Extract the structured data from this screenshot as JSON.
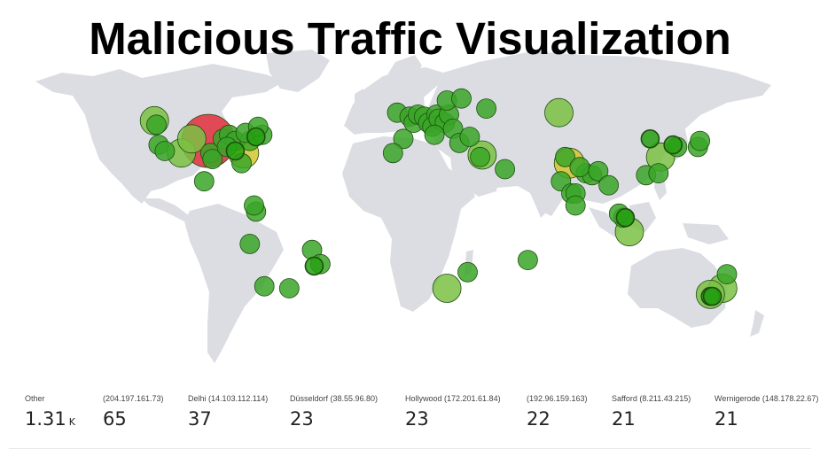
{
  "title": "Malicious Traffic Visualization",
  "colors": {
    "land": "#dcdde2",
    "high": "#e0404f",
    "medium": "#d4c430",
    "low_light": "#7ac143",
    "low": "#3aa628",
    "low_dark": "#26a012",
    "stroke": "#1f4d10"
  },
  "legend": [
    {
      "label": "Other",
      "value": "1.31",
      "unit": "K"
    },
    {
      "label": "(204.197.161.73)",
      "value": "65"
    },
    {
      "label": "Delhi (14.103.112.114)",
      "value": "37"
    },
    {
      "label": "Düsseldorf (38.55.96.80)",
      "value": "23"
    },
    {
      "label": "Hollywood (172.201.61.84)",
      "value": "23"
    },
    {
      "label": "(192.96.159.163)",
      "value": "22"
    },
    {
      "label": "Safford (8.211.43.215)",
      "value": "21"
    },
    {
      "label": "Wernigerode (148.178.22.67)",
      "value": "21"
    }
  ],
  "bubbles": [
    {
      "lon": -97,
      "lat": 39,
      "level": "high"
    },
    {
      "lon": 77,
      "lat": 28,
      "level": "medium"
    },
    {
      "lon": -80,
      "lat": 33,
      "level": "medium"
    },
    {
      "lon": -121,
      "lat": 37,
      "level": "low"
    },
    {
      "lon": -118,
      "lat": 34,
      "level": "low"
    },
    {
      "lon": -122,
      "lat": 47,
      "level": "low"
    },
    {
      "lon": -123,
      "lat": 49,
      "level": "low_light"
    },
    {
      "lon": -110,
      "lat": 33,
      "level": "low_light"
    },
    {
      "lon": -105,
      "lat": 40,
      "level": "low_light"
    },
    {
      "lon": -96,
      "lat": 33,
      "level": "low"
    },
    {
      "lon": -90,
      "lat": 40,
      "level": "low"
    },
    {
      "lon": -87,
      "lat": 42,
      "level": "low"
    },
    {
      "lon": -84,
      "lat": 39,
      "level": "low"
    },
    {
      "lon": -84,
      "lat": 34,
      "level": "low_dark"
    },
    {
      "lon": -77,
      "lat": 39,
      "level": "low"
    },
    {
      "lon": -74,
      "lat": 41,
      "level": "low_dark"
    },
    {
      "lon": -71,
      "lat": 42,
      "level": "low"
    },
    {
      "lon": -79,
      "lat": 43,
      "level": "low"
    },
    {
      "lon": -95,
      "lat": 30,
      "level": "low"
    },
    {
      "lon": -81,
      "lat": 28,
      "level": "low"
    },
    {
      "lon": -73,
      "lat": 46,
      "level": "low"
    },
    {
      "lon": -88,
      "lat": 36,
      "level": "low"
    },
    {
      "lon": -99,
      "lat": 19,
      "level": "low"
    },
    {
      "lon": -74,
      "lat": 4,
      "level": "low"
    },
    {
      "lon": -75,
      "lat": 7,
      "level": "low"
    },
    {
      "lon": -77,
      "lat": -12,
      "level": "low"
    },
    {
      "lon": -47,
      "lat": -15,
      "level": "low"
    },
    {
      "lon": -46,
      "lat": -23,
      "level": "low_dark"
    },
    {
      "lon": -43,
      "lat": -22,
      "level": "low"
    },
    {
      "lon": -70,
      "lat": -33,
      "level": "low"
    },
    {
      "lon": -58,
      "lat": -34,
      "level": "low"
    },
    {
      "lon": -6,
      "lat": 53,
      "level": "low"
    },
    {
      "lon": 0,
      "lat": 51,
      "level": "low"
    },
    {
      "lon": -3,
      "lat": 40,
      "level": "low"
    },
    {
      "lon": 2,
      "lat": 48,
      "level": "low"
    },
    {
      "lon": 4,
      "lat": 52,
      "level": "low"
    },
    {
      "lon": 7,
      "lat": 51,
      "level": "low"
    },
    {
      "lon": 9,
      "lat": 48,
      "level": "low"
    },
    {
      "lon": 13,
      "lat": 52,
      "level": "low"
    },
    {
      "lon": 11,
      "lat": 46,
      "level": "low"
    },
    {
      "lon": 14,
      "lat": 50,
      "level": "low"
    },
    {
      "lon": 17,
      "lat": 48,
      "level": "low"
    },
    {
      "lon": 19,
      "lat": 52,
      "level": "low"
    },
    {
      "lon": 21,
      "lat": 45,
      "level": "low"
    },
    {
      "lon": 18,
      "lat": 59,
      "level": "low"
    },
    {
      "lon": 25,
      "lat": 60,
      "level": "low"
    },
    {
      "lon": 12,
      "lat": 42,
      "level": "low"
    },
    {
      "lon": 24,
      "lat": 38,
      "level": "low"
    },
    {
      "lon": 37,
      "lat": 55,
      "level": "low"
    },
    {
      "lon": 29,
      "lat": 41,
      "level": "low"
    },
    {
      "lon": 35,
      "lat": 32,
      "level": "low_light"
    },
    {
      "lon": 34,
      "lat": 31,
      "level": "low"
    },
    {
      "lon": 46,
      "lat": 25,
      "level": "low"
    },
    {
      "lon": 72,
      "lat": 53,
      "level": "low_light"
    },
    {
      "lon": 73,
      "lat": 19,
      "level": "low"
    },
    {
      "lon": 78,
      "lat": 13,
      "level": "low"
    },
    {
      "lon": 80,
      "lat": 13,
      "level": "low"
    },
    {
      "lon": 85,
      "lat": 23,
      "level": "low"
    },
    {
      "lon": 88,
      "lat": 22,
      "level": "low"
    },
    {
      "lon": 80,
      "lat": 7,
      "level": "low"
    },
    {
      "lon": 75,
      "lat": 31,
      "level": "low"
    },
    {
      "lon": 82,
      "lat": 26,
      "level": "low"
    },
    {
      "lon": 91,
      "lat": 24,
      "level": "low"
    },
    {
      "lon": 96,
      "lat": 17,
      "level": "low"
    },
    {
      "lon": 103,
      "lat": 1,
      "level": "low"
    },
    {
      "lon": 104,
      "lat": 1,
      "level": "low_dark"
    },
    {
      "lon": 106,
      "lat": -6,
      "level": "low_light"
    },
    {
      "lon": 101,
      "lat": 3,
      "level": "low"
    },
    {
      "lon": 116,
      "lat": 40,
      "level": "low_dark"
    },
    {
      "lon": 121,
      "lat": 31,
      "level": "low_light"
    },
    {
      "lon": 114,
      "lat": 22,
      "level": "low"
    },
    {
      "lon": 120,
      "lat": 23,
      "level": "low"
    },
    {
      "lon": 127,
      "lat": 37,
      "level": "low_dark"
    },
    {
      "lon": 129,
      "lat": 36,
      "level": "low"
    },
    {
      "lon": 139,
      "lat": 36,
      "level": "low"
    },
    {
      "lon": 140,
      "lat": 39,
      "level": "low"
    },
    {
      "lon": 151,
      "lat": -34,
      "level": "low_light"
    },
    {
      "lon": 145,
      "lat": -37,
      "level": "low_light"
    },
    {
      "lon": 145,
      "lat": -38,
      "level": "low_dark"
    },
    {
      "lon": 146,
      "lat": -38,
      "level": "low_dark"
    },
    {
      "lon": 153,
      "lat": -27,
      "level": "low"
    },
    {
      "lon": 18,
      "lat": -34,
      "level": "low_light"
    },
    {
      "lon": 28,
      "lat": -26,
      "level": "low"
    },
    {
      "lon": 57,
      "lat": -20,
      "level": "low"
    },
    {
      "lon": -8,
      "lat": 33,
      "level": "low"
    }
  ]
}
